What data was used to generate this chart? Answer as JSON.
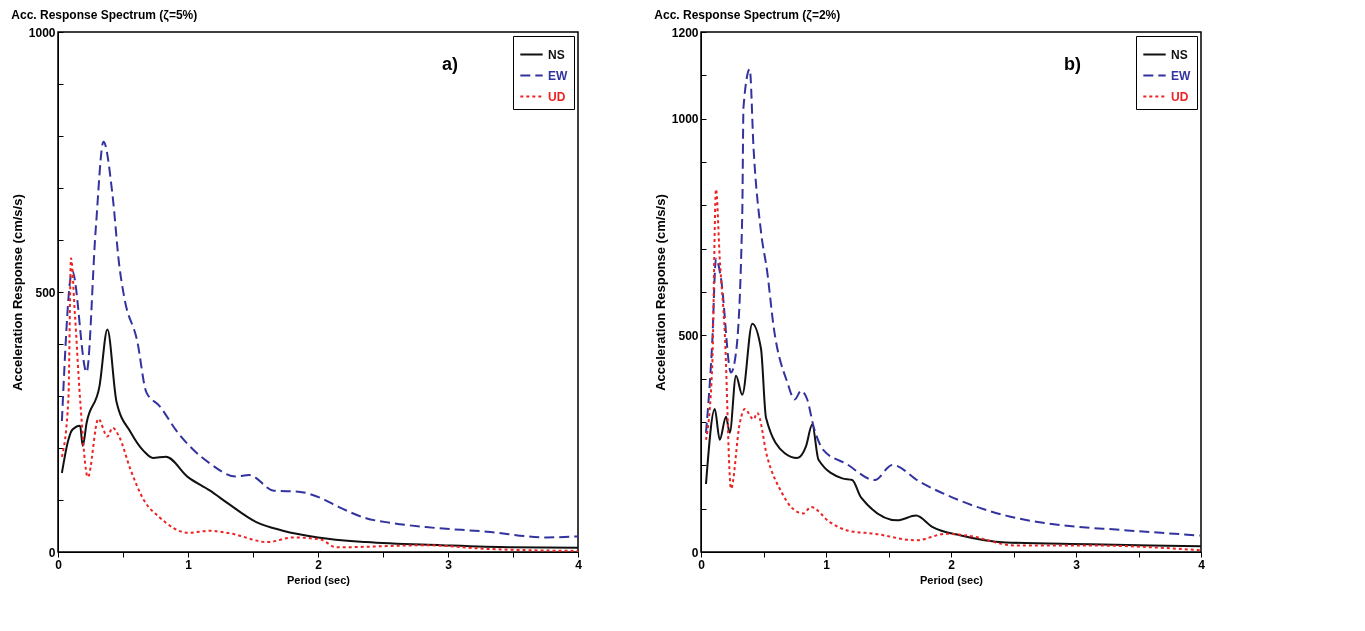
{
  "chart_data": [
    {
      "type": "line",
      "title": "Acc. Response Spectrum (ζ=5%)",
      "xlabel": "Period (sec)",
      "ylabel": "Acceleration Response (cm/s/s)",
      "annotations": [
        "a)"
      ],
      "legend": "top right",
      "grid": false,
      "xlim": [
        0,
        4
      ],
      "xticks": [
        0,
        {
          "value": 0.5,
          "label": null
        },
        1,
        {
          "value": 1.5,
          "label": null
        },
        2,
        {
          "value": 2.5,
          "label": null
        },
        3,
        {
          "value": 3.5,
          "label": null
        },
        4
      ],
      "ylim": [
        0,
        1000
      ],
      "yticks": [
        0,
        {
          "value": 100,
          "label": null
        },
        {
          "value": 200,
          "label": null
        },
        {
          "value": 300,
          "label": null
        },
        {
          "value": 400,
          "label": null
        },
        500,
        {
          "value": 600,
          "label": null
        },
        {
          "value": 700,
          "label": null
        },
        {
          "value": 800,
          "label": null
        },
        {
          "value": 900,
          "label": null
        },
        1000
      ],
      "series": [
        {
          "name": "NS",
          "color": "#111111",
          "line_style": "solid",
          "x": [
            0.03,
            0.08,
            0.11,
            0.17,
            0.19,
            0.22,
            0.32,
            0.38,
            0.45,
            0.56,
            0.66,
            0.73,
            0.83,
            1.0,
            1.17,
            1.31,
            1.53,
            1.73,
            2.0,
            2.37,
            2.95,
            3.48,
            4.0
          ],
          "values": [
            152,
            216,
            235,
            243,
            204,
            248,
            320,
            428,
            289,
            230,
            194,
            181,
            183,
            144,
            118,
            93,
            57,
            41,
            28,
            19,
            13,
            9,
            8
          ]
        },
        {
          "name": "EW",
          "color": "#3333a0",
          "line_style": "dashed",
          "x": [
            0.03,
            0.11,
            0.22,
            0.29,
            0.35,
            0.42,
            0.47,
            0.51,
            0.61,
            0.68,
            0.78,
            0.92,
            1.17,
            1.37,
            1.47,
            1.66,
            1.85,
            2.02,
            2.14,
            2.37,
            2.56,
            2.83,
            3.3,
            3.76,
            4.0
          ],
          "values": [
            252,
            540,
            346,
            620,
            789,
            685,
            554,
            489,
            405,
            307,
            281,
            230,
            170,
            145,
            148,
            118,
            116,
            104,
            89,
            65,
            56,
            48,
            39,
            28,
            30
          ]
        },
        {
          "name": "UD",
          "color": "#ee2222",
          "line_style": "dotted",
          "x": [
            0.03,
            0.08,
            0.1,
            0.13,
            0.17,
            0.23,
            0.31,
            0.38,
            0.42,
            0.47,
            0.56,
            0.66,
            0.78,
            1.0,
            1.17,
            1.34,
            1.61,
            1.81,
            2.02,
            2.14,
            2.83,
            3.3,
            4.0
          ],
          "values": [
            183,
            294,
            565,
            457,
            294,
            144,
            256,
            222,
            239,
            222,
            157,
            100,
            67,
            37,
            41,
            35,
            19,
            28,
            24,
            9,
            13,
            6,
            2
          ]
        }
      ]
    },
    {
      "type": "line",
      "title": "Acc. Response Spectrum (ζ=2%)",
      "xlabel": "Period (sec)",
      "ylabel": "Acceleration Response (cm/s/s)",
      "annotations": [
        "b)"
      ],
      "legend": "top right",
      "grid": false,
      "xlim": [
        0,
        4
      ],
      "xticks": [
        0,
        {
          "value": 0.5,
          "label": null
        },
        1,
        {
          "value": 1.5,
          "label": null
        },
        2,
        {
          "value": 2.5,
          "label": null
        },
        3,
        {
          "value": 3.5,
          "label": null
        },
        4
      ],
      "ylim": [
        0,
        1200
      ],
      "yticks": [
        0,
        {
          "value": 100,
          "label": null
        },
        {
          "value": 200,
          "label": null
        },
        {
          "value": 300,
          "label": null
        },
        {
          "value": 400,
          "label": null
        },
        500,
        {
          "value": 600,
          "label": null
        },
        {
          "value": 700,
          "label": null
        },
        {
          "value": 800,
          "label": null
        },
        {
          "value": 900,
          "label": null
        },
        1000,
        {
          "value": 1100,
          "label": null
        },
        1200
      ],
      "series": [
        {
          "name": "NS",
          "color": "#111111",
          "line_style": "solid",
          "x": [
            0.04,
            0.11,
            0.15,
            0.2,
            0.23,
            0.28,
            0.33,
            0.41,
            0.48,
            0.52,
            0.67,
            0.77,
            0.84,
            0.89,
            0.94,
            1.13,
            1.21,
            1.28,
            1.57,
            1.72,
            1.85,
            2.08,
            2.44,
            3.12,
            3.6,
            4.0
          ],
          "values": [
            157,
            330,
            259,
            312,
            275,
            407,
            363,
            527,
            469,
            310,
            228,
            217,
            244,
            294,
            213,
            170,
            166,
            126,
            73,
            84,
            58,
            38,
            22,
            18,
            15,
            13
          ]
        },
        {
          "name": "EW",
          "color": "#3333a0",
          "line_style": "dashed",
          "x": [
            0.04,
            0.09,
            0.12,
            0.16,
            0.24,
            0.28,
            0.33,
            0.34,
            0.39,
            0.42,
            0.48,
            0.53,
            0.58,
            0.69,
            0.75,
            0.8,
            0.85,
            0.9,
            0.98,
            1.16,
            1.39,
            1.53,
            1.75,
            2.06,
            2.44,
            2.88,
            3.36,
            3.99
          ],
          "values": [
            275,
            485,
            677,
            631,
            414,
            460,
            779,
            1027,
            1114,
            934,
            739,
            646,
            522,
            392,
            352,
            372,
            352,
            290,
            235,
            204,
            166,
            201,
            162,
            120,
            84,
            62,
            51,
            38
          ]
        },
        {
          "name": "UD",
          "color": "#ee2222",
          "line_style": "dotted",
          "x": [
            0.04,
            0.09,
            0.12,
            0.15,
            0.19,
            0.24,
            0.31,
            0.35,
            0.42,
            0.45,
            0.53,
            0.65,
            0.72,
            0.82,
            0.88,
            1.03,
            1.18,
            1.39,
            1.72,
            1.96,
            2.13,
            2.51,
            3.12,
            4.0
          ],
          "values": [
            259,
            430,
            837,
            677,
            507,
            146,
            297,
            330,
            306,
            321,
            219,
            135,
            104,
            89,
            104,
            69,
            49,
            42,
            27,
            42,
            38,
            15,
            15,
            4
          ]
        }
      ]
    }
  ]
}
